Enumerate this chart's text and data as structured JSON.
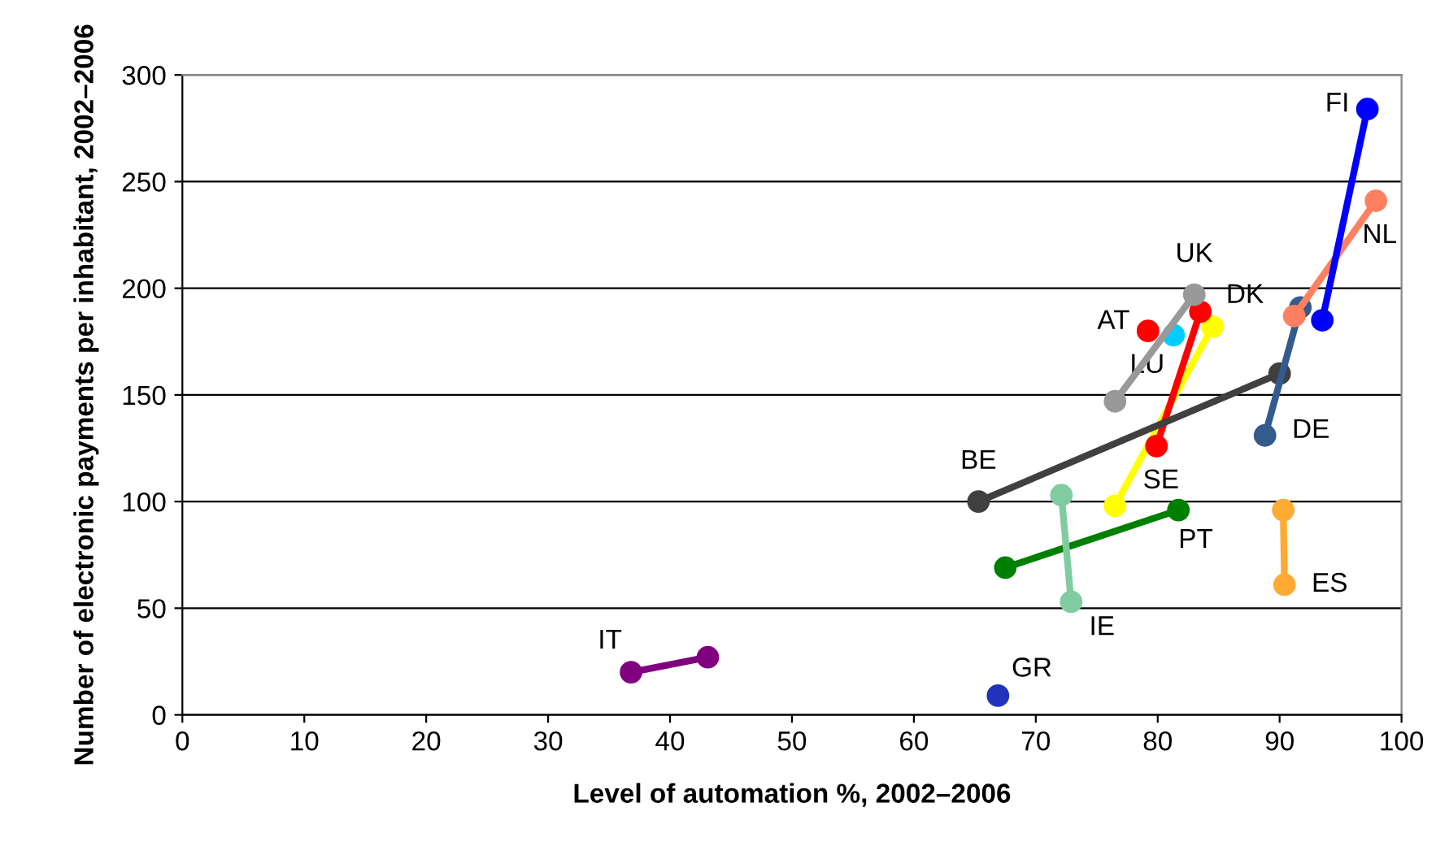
{
  "chart_data": {
    "type": "line",
    "xlabel": "Level of automation %, 2002–2006",
    "ylabel": "Number of electronic payments per inhabitant, 2002–2006",
    "xlim": [
      0,
      100
    ],
    "xticks": [
      0,
      10,
      20,
      30,
      40,
      50,
      60,
      70,
      80,
      90,
      100
    ],
    "ylim": [
      0,
      300
    ],
    "yticks": [
      0,
      50,
      100,
      150,
      200,
      250,
      300
    ],
    "grid": "y",
    "legend": false,
    "marker": "circle",
    "line_style": "solid",
    "series": [
      {
        "name": "FI",
        "color": "#0000ff",
        "x": [
          93.5,
          97.2
        ],
        "values": [
          185,
          284
        ]
      },
      {
        "name": "NL",
        "color": "#ff8060",
        "x": [
          91.2,
          97.9
        ],
        "values": [
          187,
          241
        ]
      },
      {
        "name": "DE",
        "color": "#335b8e",
        "x": [
          88.8,
          91.7
        ],
        "values": [
          131,
          191
        ]
      },
      {
        "name": "BE",
        "color": "#404040",
        "x": [
          65.3,
          90.0
        ],
        "values": [
          100,
          160
        ]
      },
      {
        "name": "UK",
        "color": "#999999",
        "x": [
          76.5,
          83.0
        ],
        "values": [
          147,
          197
        ]
      },
      {
        "name": "AT",
        "color": "#ff0000",
        "x": [
          79.2
        ],
        "values": [
          180
        ]
      },
      {
        "name": "LU",
        "color": "#00ccff",
        "x": [
          81.3
        ],
        "values": [
          178
        ]
      },
      {
        "name": "SE",
        "color": "#ff0000",
        "x": [
          79.9,
          83.5
        ],
        "values": [
          126,
          189
        ]
      },
      {
        "name": "DK",
        "color": "#ffff00",
        "x": [
          76.5,
          84.5
        ],
        "values": [
          98,
          182
        ]
      },
      {
        "name": "IE",
        "color": "#80cca0",
        "x": [
          72.9,
          72.1
        ],
        "values": [
          53,
          103
        ]
      },
      {
        "name": "PT",
        "color": "#008000",
        "x": [
          67.5,
          81.7
        ],
        "values": [
          69,
          96
        ]
      },
      {
        "name": "ES",
        "color": "#ffaa33",
        "x": [
          90.4,
          90.3
        ],
        "values": [
          61,
          96
        ]
      },
      {
        "name": "GR",
        "color": "#2233bb",
        "x": [
          66.9
        ],
        "values": [
          9
        ]
      },
      {
        "name": "IT",
        "color": "#800080",
        "x": [
          36.8,
          43.1
        ],
        "values": [
          20,
          27
        ]
      }
    ]
  }
}
